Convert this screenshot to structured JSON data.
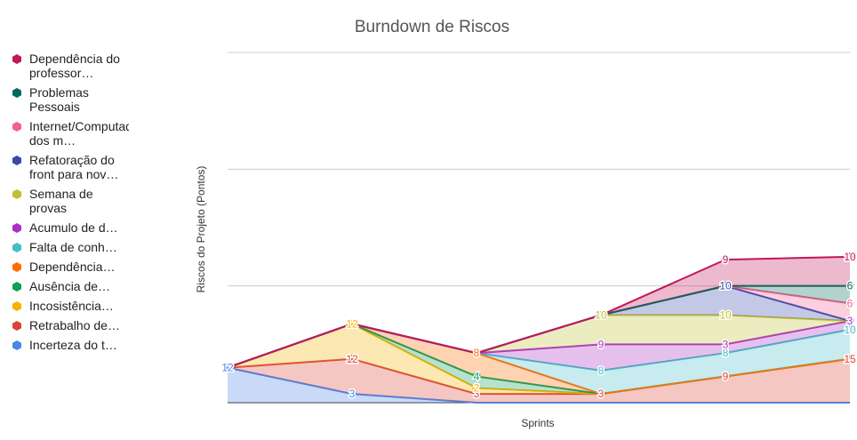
{
  "chart_data": {
    "type": "area",
    "stacked": true,
    "title": "Burndown de Riscos",
    "xlabel": "Sprints",
    "ylabel": "Riscos do Projeto (Pontos)",
    "ylim": [
      0,
      120
    ],
    "grid": true,
    "legend_position": "left",
    "x_count": 6,
    "series": [
      {
        "name": "Incerteza do t…",
        "color": "#4a86e8",
        "values": [
          12,
          3,
          0,
          0,
          0,
          0
        ]
      },
      {
        "name": "Retrabalho de…",
        "color": "#db4437",
        "values": [
          0,
          12,
          3,
          3,
          9,
          15
        ]
      },
      {
        "name": "Incosistência…",
        "color": "#f4b400",
        "values": [
          0,
          12,
          2,
          0,
          0,
          0
        ]
      },
      {
        "name": "Ausência de…",
        "color": "#0f9d58",
        "values": [
          0,
          0,
          4,
          0,
          0,
          0
        ]
      },
      {
        "name": "Dependência…",
        "color": "#ff6d01",
        "values": [
          0,
          0,
          8,
          0,
          0,
          0
        ]
      },
      {
        "name": "Falta de conh…",
        "color": "#46bdc6",
        "values": [
          0,
          0,
          0,
          8,
          8,
          10
        ]
      },
      {
        "name": "Acumulo de d…",
        "color": "#ab30c4",
        "values": [
          0,
          0,
          0,
          9,
          3,
          3
        ]
      },
      {
        "name": "Semana de provas",
        "color": "#c0c032",
        "values": [
          0,
          0,
          0,
          10,
          10,
          0
        ]
      },
      {
        "name": "Refatoração do front para nov…",
        "color": "#3949ab",
        "values": [
          0,
          0,
          0,
          0,
          10,
          0
        ]
      },
      {
        "name": "Internet/Computador dos m…",
        "color": "#f06292",
        "values": [
          0,
          0,
          0,
          0,
          0,
          6
        ]
      },
      {
        "name": "Problemas Pessoais",
        "color": "#00695c",
        "values": [
          0,
          0,
          0,
          0,
          0,
          6
        ]
      },
      {
        "name": "Dependência do professor…",
        "color": "#c2185b",
        "values": [
          0,
          0,
          0,
          0,
          9,
          10
        ]
      }
    ],
    "legend": [
      {
        "label": "Dependência do professor…",
        "color": "#c2185b"
      },
      {
        "label": "Problemas Pessoais",
        "color": "#00695c"
      },
      {
        "label": "Internet/Computador dos m…",
        "color": "#f06292"
      },
      {
        "label": "Refatoração do front para nov…",
        "color": "#3949ab"
      },
      {
        "label": "Semana de provas",
        "color": "#c0c032"
      },
      {
        "label": "Acumulo de d…",
        "color": "#ab30c4"
      },
      {
        "label": "Falta de conh…",
        "color": "#46bdc6"
      },
      {
        "label": "Dependência…",
        "color": "#ff6d01"
      },
      {
        "label": "Ausência de…",
        "color": "#0f9d58"
      },
      {
        "label": "Incosistência…",
        "color": "#f4b400"
      },
      {
        "label": "Retrabalho de…",
        "color": "#db4437"
      },
      {
        "label": "Incerteza do t…",
        "color": "#4a86e8"
      }
    ]
  }
}
